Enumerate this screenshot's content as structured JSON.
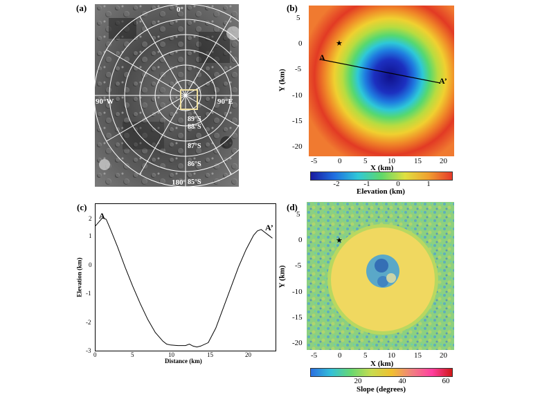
{
  "panels": {
    "a": {
      "label": "(a)",
      "lon_labels": [
        "0°",
        "90°W",
        "90°E",
        "180°"
      ],
      "lat_labels": [
        "89°S",
        "88°S",
        "87°S",
        "86°S",
        "85°S"
      ]
    },
    "b": {
      "label": "(b)",
      "xlabel": "X (km)",
      "ylabel": "Y (km)",
      "xticks": [
        "-5",
        "0",
        "5",
        "10",
        "15",
        "20"
      ],
      "yticks": [
        "5",
        "0",
        "-5",
        "-10",
        "-15",
        "-20"
      ],
      "profile_start": "A",
      "profile_end": "A’",
      "marker": "★",
      "colorbar": {
        "label": "Elevation (km)",
        "ticks": [
          "-2",
          "-1",
          "0",
          "1"
        ],
        "colors": [
          "#1a1aa0",
          "#1f6fe0",
          "#2fc8d8",
          "#5fd86a",
          "#e0e040",
          "#f0a030",
          "#e63a2a"
        ]
      }
    },
    "c": {
      "label": "(c)",
      "xlabel": "Distance (km)",
      "ylabel": "Elevation (km)",
      "xticks": [
        "0",
        "5",
        "10",
        "15",
        "20"
      ],
      "yticks": [
        "2",
        "1",
        "0",
        "-1",
        "-2",
        "-3"
      ],
      "start_label": "A",
      "end_label": "A’"
    },
    "d": {
      "label": "(d)",
      "xlabel": "X (km)",
      "ylabel": "Y (km)",
      "xticks": [
        "-5",
        "0",
        "5",
        "10",
        "15",
        "20"
      ],
      "yticks": [
        "5",
        "0",
        "-5",
        "-10",
        "-15",
        "-20"
      ],
      "marker": "★",
      "colorbar": {
        "label": "Slope (degrees)",
        "ticks": [
          "20",
          "40",
          "60"
        ],
        "colors": [
          "#2a6fe0",
          "#33c0d8",
          "#68d870",
          "#c8dc50",
          "#f0c030",
          "#f08080",
          "#ff3fa0",
          "#d01818"
        ]
      }
    }
  },
  "chart_data": [
    {
      "type": "line",
      "title": "",
      "xlabel": "Distance (km)",
      "ylabel": "Elevation (km)",
      "xlim": [
        0,
        24
      ],
      "ylim": [
        -3,
        2.1
      ],
      "x": [
        0,
        0.5,
        1,
        1.5,
        2,
        3,
        4,
        5,
        6,
        7,
        8,
        9,
        9.5,
        10,
        11,
        12,
        12.5,
        13,
        13.5,
        14,
        15,
        16,
        17,
        18,
        19,
        20,
        21,
        21.5,
        22,
        22.5,
        23,
        23.5
      ],
      "series": [
        {
          "values": [
            1.3,
            1.45,
            1.6,
            1.55,
            1.25,
            0.6,
            -0.1,
            -0.75,
            -1.35,
            -1.9,
            -2.35,
            -2.65,
            -2.75,
            -2.78,
            -2.8,
            -2.8,
            -2.75,
            -2.82,
            -2.85,
            -2.82,
            -2.7,
            -2.2,
            -1.5,
            -0.8,
            -0.1,
            0.5,
            1.0,
            1.15,
            1.2,
            1.1,
            1.0,
            0.9
          ]
        }
      ]
    }
  ]
}
